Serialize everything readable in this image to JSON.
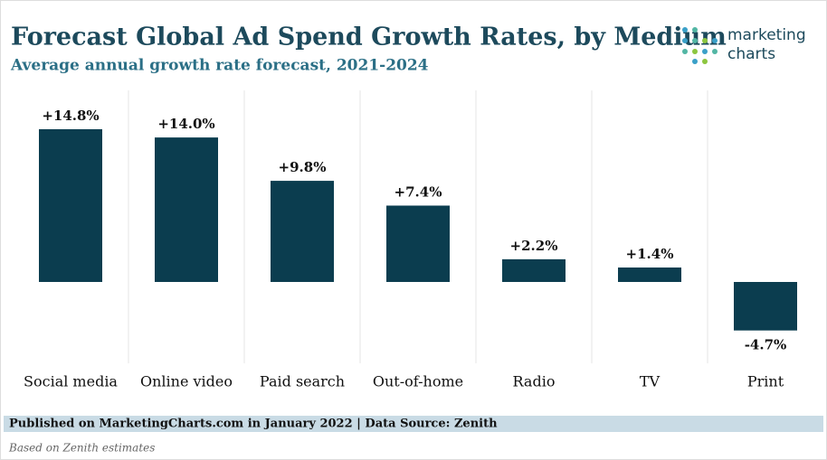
{
  "chart_data": {
    "type": "bar",
    "title": "Forecast Global Ad Spend Growth Rates, by Medium",
    "subtitle": "Average annual growth rate forecast, 2021-2024",
    "categories": [
      "Social media",
      "Online video",
      "Paid search",
      "Out-of-home",
      "Radio",
      "TV",
      "Print"
    ],
    "values": [
      14.8,
      14.0,
      9.8,
      7.4,
      2.2,
      1.4,
      -4.7
    ],
    "value_labels": [
      "+14.8%",
      "+14.0%",
      "+9.8%",
      "+7.4%",
      "+2.2%",
      "+1.4%",
      "-4.7%"
    ],
    "color": "#0b3d4f"
  },
  "logo": [
    "marketing",
    "charts"
  ],
  "footer": {
    "published": "Published on MarketingCharts.com in January 2022 | Data Source: Zenith",
    "note": "Based on Zenith estimates"
  }
}
